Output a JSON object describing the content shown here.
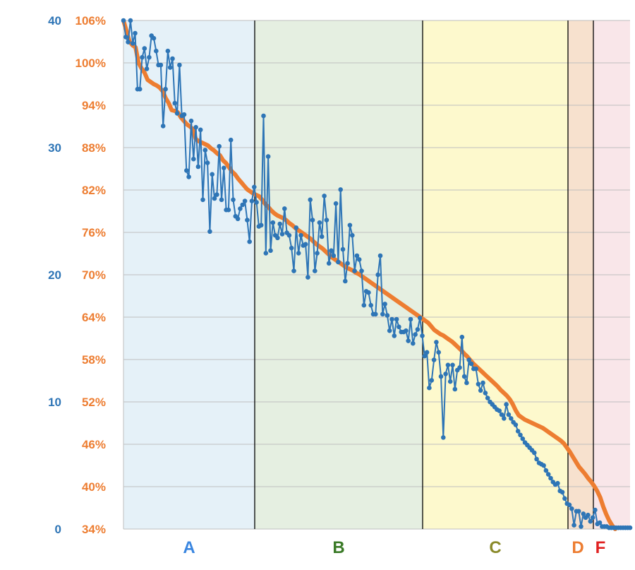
{
  "colors": {
    "series_score": "#2e75b6",
    "series_pct": "#ed7d31",
    "grid": "#bfbfbf",
    "zone_divider": "#000000"
  },
  "chart_data": {
    "type": "line",
    "title": "",
    "xlabel": "",
    "ylabel": "",
    "grid": true,
    "y_left_outer": {
      "ticks": [
        "0",
        "10",
        "20",
        "30",
        "40"
      ],
      "range": [
        0,
        40
      ]
    },
    "y_left_inner": {
      "ticks": [
        "34%",
        "40%",
        "46%",
        "52%",
        "58%",
        "64%",
        "70%",
        "76%",
        "82%",
        "88%",
        "94%",
        "100%",
        "106%"
      ],
      "range": [
        34,
        106
      ]
    },
    "x_index_range": [
      1,
      160
    ],
    "zones": [
      {
        "label": "A",
        "start": 1,
        "end": 46,
        "color": "#e5f1f8",
        "label_color": "#3a86e0"
      },
      {
        "label": "B",
        "start": 46,
        "end": 104,
        "color": "#e5efe1",
        "label_color": "#3a7a27"
      },
      {
        "label": "C",
        "start": 104,
        "end": 154,
        "color": "#fdf9cd",
        "label_color": "#8a8a2a"
      },
      {
        "label": "D",
        "start": 154,
        "end": 163,
        "color": "#f7e1ce",
        "label_color": "#ed7d31"
      },
      {
        "label": "F",
        "start": 163,
        "end": 176,
        "color": "#f9e6e9",
        "label_color": "#e02020"
      }
    ],
    "series": [
      {
        "axis": "outer",
        "values": [
          40,
          38.7,
          38.3,
          40,
          38.2,
          39,
          34.6,
          34.6,
          37.1,
          37.8,
          36.2,
          37.1,
          38.8,
          38.6,
          37.6,
          36.5,
          36.5,
          31.7,
          34.6,
          37.6,
          36.3,
          37,
          33.5,
          32.7,
          36.5,
          32.5,
          32.6,
          28.2,
          27.7,
          32.1,
          29.1,
          31.6,
          28.5,
          31.4,
          25.9,
          29.8,
          28.8,
          23.4,
          27.9,
          26,
          26.3,
          30.1,
          25.9,
          28.4,
          25.1,
          25.1,
          30.6,
          25.9,
          24.6,
          24.4,
          25.2,
          25.5,
          25.8,
          24.3,
          22.6,
          25.8,
          26.9,
          25.7,
          23.8,
          23.9,
          32.5,
          21.7,
          29.3,
          21.9,
          24.1,
          23.1,
          22.9,
          24,
          23.2,
          25.2,
          23.3,
          23.1,
          22.1,
          20.3,
          23.7,
          21.7,
          23.1,
          22.3,
          22.4,
          19.8,
          25.9,
          24.3,
          20.3,
          21.7,
          24.1,
          23,
          26.2,
          24.3,
          20.9,
          21.9,
          21.5,
          25.6,
          21,
          26.7,
          22,
          19.5,
          20.9,
          23.9,
          23.1,
          20.3,
          21.5,
          21.2,
          20.3,
          17.6,
          18.7,
          18.6,
          17.6,
          16.9,
          16.9,
          20,
          21.5,
          16.9,
          17.7,
          16.8,
          15.6,
          16.5,
          15.2,
          16.5,
          15.9,
          15.5,
          15.5,
          15.6,
          14.8,
          16.5,
          14.6,
          15.3,
          15.7,
          16.6,
          15.2,
          13.6,
          13.9,
          11.1,
          11.7,
          13.3,
          14.7,
          13.9,
          12,
          7.2,
          12.2,
          12.9,
          11.6,
          12.9,
          11,
          12.5,
          12.7,
          15.1,
          12,
          11.5,
          13.3,
          13,
          12.6,
          12.6,
          11.4,
          10.9,
          11.5,
          10.7,
          10.3,
          10,
          9.8,
          9.6,
          9.4,
          9.3,
          9,
          8.7,
          9.8,
          9,
          8.7,
          8.4,
          8.2,
          7.7,
          7.4,
          7.1,
          6.8,
          6.6,
          6.4,
          6.2,
          6,
          5.5,
          5.2,
          5.1,
          5,
          4.6,
          4.3,
          4,
          3.7,
          3.5,
          3.6,
          3,
          2.9,
          2.4,
          2,
          1.9,
          1.6,
          0.3,
          1.4,
          1.4,
          0.2,
          1.2,
          0.9,
          1.1,
          0.6,
          0.9,
          1.5,
          0.4,
          0.5,
          0.2,
          0.2,
          0.2,
          0.1,
          0.1,
          0.1,
          0.1,
          0.1,
          0.1,
          0.1,
          0.1,
          0.1,
          0.1
        ]
      },
      {
        "axis": "inner",
        "values": [
          106,
          104.5,
          103,
          102.5,
          102.2,
          100,
          99.2,
          98.6,
          97.6,
          97.3,
          97,
          96.8,
          96.5,
          96,
          95,
          94.3,
          93.3,
          93.2,
          93,
          92.3,
          91.8,
          91.3,
          91,
          90.6,
          89.2,
          88.9,
          88.7,
          88.5,
          88.3,
          87.9,
          87.6,
          87.2,
          86.9,
          86.2,
          85.8,
          85.2,
          84.6,
          84.2,
          83.6,
          83.1,
          82.6,
          82.1,
          81.8,
          81.5,
          81.3,
          81.1,
          80.6,
          80,
          79.6,
          79.1,
          78.7,
          78.4,
          78.2,
          78,
          77.7,
          77.3,
          77,
          76.6,
          76.3,
          76,
          75.7,
          75.4,
          75.1,
          74.7,
          74.3,
          74,
          73.7,
          73.3,
          72.9,
          72.5,
          72.2,
          71.9,
          71.6,
          71.3,
          71,
          70.8,
          70.6,
          70.3,
          70.1,
          69.8,
          69.5,
          69.2,
          68.9,
          68.6,
          68.3,
          68,
          67.7,
          67.4,
          67.1,
          66.8,
          66.5,
          66.2,
          65.9,
          65.6,
          65.3,
          65,
          64.7,
          64.4,
          64.1,
          63.8,
          63.5,
          63.2,
          62.7,
          62.2,
          61.9,
          61.6,
          61.4,
          61.1,
          60.8,
          60.5,
          60.1,
          59.7,
          59.3,
          58.8,
          58.4,
          57.9,
          57.4,
          57,
          56.6,
          56.2,
          55.8,
          55.4,
          55,
          54.6,
          54.2,
          53.7,
          53.3,
          52.9,
          52.4,
          51.7,
          50.8,
          50.1,
          49.8,
          49.5,
          49.3,
          49.1,
          48.9,
          48.7,
          48.5,
          48.3,
          48,
          47.7,
          47.4,
          47.1,
          46.8,
          46.5,
          46.1,
          45.5,
          44.9,
          44.2,
          43.5,
          42.8,
          42.3,
          41.8,
          41.2,
          40.7,
          40.1,
          39.4,
          38.5,
          37.2,
          36.1,
          35.2,
          34.5,
          34
        ]
      }
    ]
  }
}
